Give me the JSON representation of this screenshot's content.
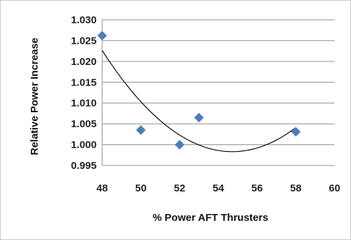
{
  "chart_data": {
    "type": "scatter",
    "title": "",
    "xlabel": "% Power AFT Thrusters",
    "ylabel": "Relative Power Increase",
    "xlim": [
      48,
      60
    ],
    "ylim": [
      0.995,
      1.03
    ],
    "xticks": [
      48,
      50,
      52,
      54,
      56,
      58,
      60
    ],
    "yticks": [
      "0.995",
      "1.000",
      "1.005",
      "1.010",
      "1.015",
      "1.020",
      "1.025",
      "1.030"
    ],
    "grid": "horizontal",
    "legend": "none",
    "marker": "diamond",
    "marker_color": "#4a7ebb",
    "trendline": {
      "type": "polynomial-2",
      "color": "#000000"
    },
    "series": [
      {
        "x": [
          48,
          50,
          52,
          53,
          58
        ],
        "y": [
          1.0262,
          1.0035,
          1.0,
          1.0065,
          1.0031
        ]
      }
    ]
  }
}
